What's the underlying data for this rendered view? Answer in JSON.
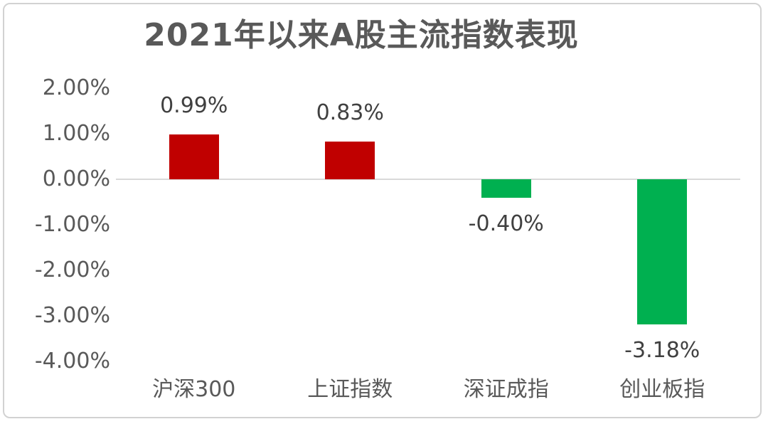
{
  "chart_data": {
    "type": "bar",
    "title": "2021年以来A股主流指数表现",
    "categories": [
      "沪深300",
      "上证指数",
      "深证成指",
      "创业板指"
    ],
    "values": [
      0.99,
      0.83,
      -0.4,
      -3.18
    ],
    "data_labels": [
      "0.99%",
      "0.83%",
      "-0.40%",
      "-3.18%"
    ],
    "y_ticks": [
      "2.00%",
      "1.00%",
      "0.00%",
      "-1.00%",
      "-2.00%",
      "-3.00%",
      "-4.00%"
    ],
    "y_tick_values": [
      2,
      1,
      0,
      -1,
      -2,
      -3,
      -4
    ],
    "ylim": [
      -4,
      2
    ],
    "xlabel": "",
    "ylabel": "",
    "legend": "none",
    "gridlines": "zero axis line only",
    "colors": {
      "positive_bar": "#C00000",
      "negative_bar": "#00B050",
      "axis_line": "#D9D9D9",
      "tick_text": "#595959",
      "value_label_text": "#404040",
      "category_text": "#595959",
      "title_text": "#595959",
      "card_border": "#D2D2D2",
      "background": "#FFFFFF"
    }
  }
}
